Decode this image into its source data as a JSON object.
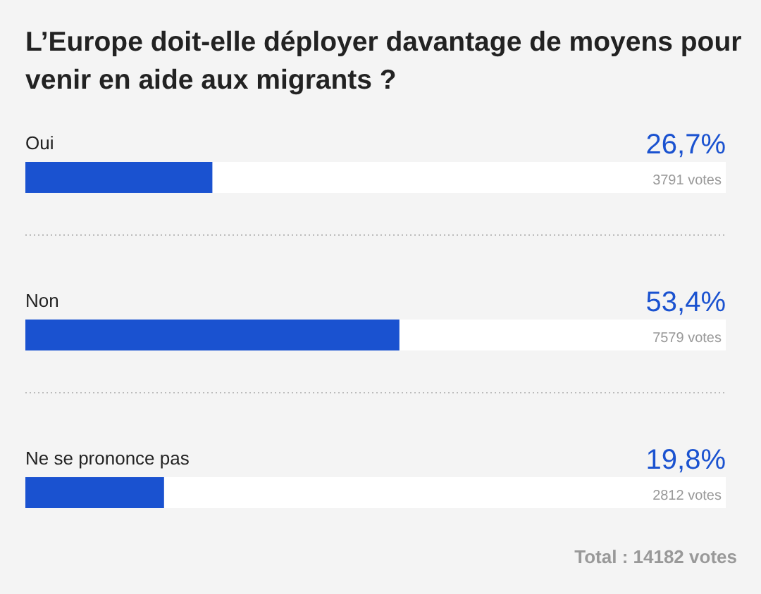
{
  "chart_data": {
    "type": "bar",
    "orientation": "horizontal",
    "title": "L’Europe doit-elle déployer davantage de moyens pour venir en aide aux migrants ?",
    "categories": [
      "Oui",
      "Non",
      "Ne se prononce pas"
    ],
    "values": [
      26.7,
      53.4,
      19.8
    ],
    "value_labels": [
      "26,7%",
      "53,4%",
      "19,8%"
    ],
    "color": "#1a52d0",
    "xlim": [
      0,
      100
    ],
    "annotations": [
      "3791 votes",
      "7579 votes",
      "2812 votes",
      "Total : 14182 votes"
    ]
  }
}
